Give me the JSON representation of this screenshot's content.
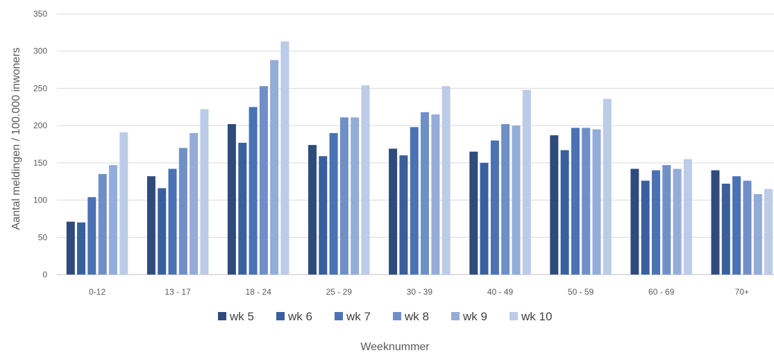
{
  "chart_data": {
    "type": "bar",
    "title": "",
    "xlabel": "Weeknummer",
    "ylabel": "Aantal meldingen / 100.000 inwoners",
    "ylim": [
      0,
      350
    ],
    "yticks": [
      "0",
      "50",
      "100",
      "150",
      "200",
      "250",
      "300",
      "350"
    ],
    "grid": "horizontal",
    "legend_position": "bottom",
    "categories": [
      "0-12",
      "13 - 17",
      "18 - 24",
      "25 - 29",
      "30 - 39",
      "40 - 49",
      "50 - 59",
      "60 - 69",
      "70+"
    ],
    "series": [
      {
        "name": "wk 5",
        "color": "#2f4b7c",
        "values": [
          71,
          132,
          202,
          174,
          169,
          165,
          187,
          142,
          140
        ]
      },
      {
        "name": "wk 6",
        "color": "#3a5f9e",
        "values": [
          70,
          116,
          177,
          159,
          160,
          150,
          167,
          126,
          122
        ]
      },
      {
        "name": "wk 7",
        "color": "#4a72b4",
        "values": [
          104,
          142,
          225,
          190,
          198,
          180,
          197,
          140,
          132
        ]
      },
      {
        "name": "wk 8",
        "color": "#6f8fc7",
        "values": [
          135,
          170,
          253,
          211,
          218,
          202,
          197,
          147,
          126
        ]
      },
      {
        "name": "wk 9",
        "color": "#94acd8",
        "values": [
          147,
          190,
          288,
          211,
          215,
          200,
          195,
          142,
          108
        ]
      },
      {
        "name": "wk 10",
        "color": "#bccbe7",
        "values": [
          191,
          222,
          313,
          254,
          253,
          248,
          236,
          155,
          115
        ]
      }
    ]
  }
}
